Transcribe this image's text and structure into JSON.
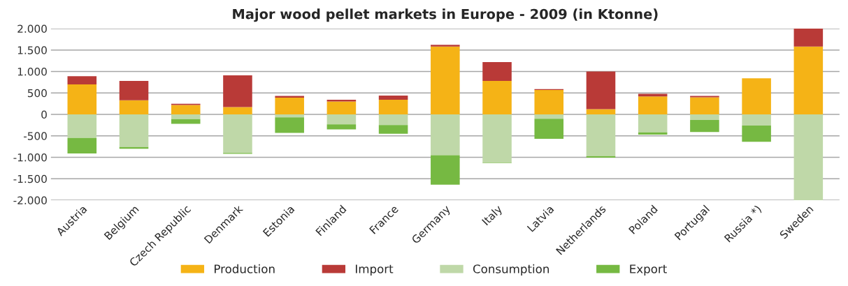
{
  "chart_data": {
    "type": "bar",
    "title": "Major wood pellet markets in Europe - 2009 (in Ktonne)",
    "categories": [
      "Austria",
      "Belgium",
      "Czech Republic",
      "Denmark",
      "Estonia",
      "Finland",
      "France",
      "Germany",
      "Italy",
      "Latvia",
      "Netherlands",
      "Poland",
      "Portugal",
      "Russia *)",
      "Sweden"
    ],
    "stacked": true,
    "series": [
      {
        "name": "Production",
        "color": "#f5b316",
        "values": [
          700,
          330,
          220,
          170,
          390,
          300,
          340,
          1580,
          780,
          570,
          120,
          420,
          400,
          840,
          1580
        ]
      },
      {
        "name": "Import",
        "color": "#b93a37",
        "values": [
          190,
          450,
          30,
          740,
          40,
          40,
          100,
          40,
          440,
          20,
          880,
          60,
          30,
          null,
          420
        ]
      },
      {
        "name": "Consumption",
        "color": "#bfd8a8",
        "values": [
          -550,
          -760,
          -110,
          -900,
          -70,
          -230,
          -250,
          -950,
          -1130,
          -100,
          -970,
          -420,
          -130,
          -260,
          -2000
        ]
      },
      {
        "name": "Export",
        "color": "#76b942",
        "values": [
          -360,
          -40,
          -110,
          -20,
          -360,
          -120,
          -200,
          -690,
          -10,
          -470,
          -40,
          -50,
          -280,
          -380,
          null
        ]
      }
    ],
    "ylim": [
      -2000,
      2000
    ],
    "yticks": [
      {
        "value": -2000,
        "label": "-2.000"
      },
      {
        "value": -1500,
        "label": "-1.500"
      },
      {
        "value": -1000,
        "label": "-1.000"
      },
      {
        "value": -500,
        "label": "-500"
      },
      0,
      500,
      {
        "value": 1000,
        "label": "1.000"
      },
      {
        "value": 1500,
        "label": "1.500"
      },
      {
        "value": 2000,
        "label": "2.000"
      }
    ],
    "grid": "y",
    "legend": "bottom"
  }
}
